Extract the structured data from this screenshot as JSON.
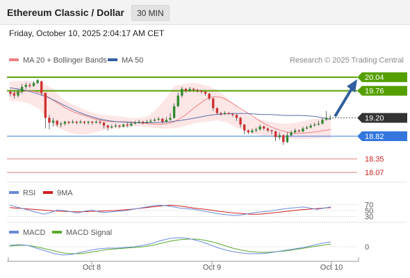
{
  "header": {
    "title": "Ethereum Classic / Dollar",
    "timeframe": "30 MIN",
    "timestamp": "Friday, October 10, 2025 2:04:17 AM CET"
  },
  "legend": {
    "ma20": "MA 20 + Bollinger Bands",
    "ma50": "MA 50",
    "copyright": "Research © 2025 Trading Central",
    "rsi": "RSI",
    "rsi_ma": "9MA",
    "macd": "MACD",
    "macd_signal": "MACD Signal"
  },
  "colors": {
    "candle_up": "#2e8b2e",
    "candle_down": "#d03030",
    "ma20": "#f08080",
    "ma50": "#5a6fa8",
    "bollinger_fill": "#fde3e3",
    "resistance": "#55a000",
    "pivot": "#3377dd",
    "support": "#e07a7a",
    "current": "#333333",
    "arrow": "#2f5f9f",
    "rsi": "#6a8ad8",
    "rsi_ma": "#d02020",
    "macd": "#6a8ad8",
    "macd_signal": "#5aaa2a"
  },
  "chart_data": [
    {
      "type": "candlestick",
      "x_ticks": [
        "Oct 8",
        "Oct 9",
        "Oct 10"
      ],
      "y_range": [
        17.9,
        20.2
      ],
      "levels": [
        {
          "label": "20.04",
          "value": 20.04,
          "kind": "resistance"
        },
        {
          "label": "19.76",
          "value": 19.76,
          "kind": "resistance"
        },
        {
          "label": "19.20",
          "value": 19.2,
          "kind": "current"
        },
        {
          "label": "18.82",
          "value": 18.82,
          "kind": "pivot"
        },
        {
          "label": "18.35",
          "value": 18.35,
          "kind": "support"
        },
        {
          "label": "18.07",
          "value": 18.07,
          "kind": "support"
        }
      ],
      "candles": [
        [
          19.74,
          19.7,
          19.78,
          19.64
        ],
        [
          19.7,
          19.66,
          19.75,
          19.6
        ],
        [
          19.66,
          19.74,
          19.79,
          19.62
        ],
        [
          19.74,
          19.84,
          19.9,
          19.7
        ],
        [
          19.84,
          19.88,
          19.93,
          19.8
        ],
        [
          19.88,
          19.86,
          19.92,
          19.82
        ],
        [
          19.86,
          19.92,
          19.96,
          19.84
        ],
        [
          19.92,
          19.98,
          20.0,
          19.9
        ],
        [
          19.96,
          19.72,
          19.96,
          19.66
        ],
        [
          19.72,
          19.2,
          19.72,
          18.98
        ],
        [
          19.2,
          19.1,
          19.26,
          18.96
        ],
        [
          19.1,
          19.14,
          19.2,
          19.02
        ],
        [
          19.14,
          19.06,
          19.16,
          19.02
        ],
        [
          19.06,
          19.08,
          19.12,
          19.0
        ],
        [
          19.08,
          19.12,
          19.14,
          19.04
        ],
        [
          19.12,
          19.1,
          19.14,
          19.06
        ],
        [
          19.1,
          19.12,
          19.16,
          19.08
        ],
        [
          19.12,
          19.1,
          19.14,
          19.06
        ],
        [
          19.1,
          19.12,
          19.16,
          19.08
        ],
        [
          19.12,
          19.1,
          19.14,
          19.06
        ],
        [
          19.1,
          19.12,
          19.14,
          19.06
        ],
        [
          19.12,
          19.1,
          19.14,
          19.06
        ],
        [
          19.1,
          19.12,
          19.16,
          19.08
        ],
        [
          19.12,
          19.1,
          19.16,
          19.06
        ],
        [
          19.1,
          19.04,
          19.12,
          18.98
        ],
        [
          19.04,
          19.0,
          19.06,
          18.94
        ],
        [
          19.0,
          19.02,
          19.06,
          18.98
        ],
        [
          19.02,
          19.04,
          19.08,
          19.0
        ],
        [
          19.04,
          19.02,
          19.06,
          18.98
        ],
        [
          19.02,
          19.06,
          19.08,
          19.0
        ],
        [
          19.06,
          19.04,
          19.1,
          19.0
        ],
        [
          19.04,
          19.08,
          19.12,
          19.02
        ],
        [
          19.08,
          19.1,
          19.14,
          19.06
        ],
        [
          19.1,
          19.12,
          19.16,
          19.08
        ],
        [
          19.12,
          19.1,
          19.14,
          19.06
        ],
        [
          19.1,
          19.12,
          19.16,
          19.08
        ],
        [
          19.12,
          19.14,
          19.18,
          19.1
        ],
        [
          19.14,
          19.16,
          19.2,
          19.12
        ],
        [
          19.16,
          19.18,
          19.22,
          19.14
        ],
        [
          19.18,
          19.12,
          19.2,
          19.08
        ],
        [
          19.12,
          19.16,
          19.22,
          19.1
        ],
        [
          19.16,
          19.2,
          19.3,
          19.14
        ],
        [
          19.2,
          19.44,
          19.5,
          19.18
        ],
        [
          19.44,
          19.66,
          19.72,
          19.42
        ],
        [
          19.66,
          19.8,
          19.84,
          19.62
        ],
        [
          19.8,
          19.76,
          19.82,
          19.72
        ],
        [
          19.76,
          19.8,
          19.84,
          19.74
        ],
        [
          19.8,
          19.78,
          19.82,
          19.74
        ],
        [
          19.78,
          19.76,
          19.8,
          19.72
        ],
        [
          19.76,
          19.74,
          19.78,
          19.7
        ],
        [
          19.74,
          19.7,
          19.76,
          19.66
        ],
        [
          19.7,
          19.6,
          19.72,
          19.56
        ],
        [
          19.6,
          19.4,
          19.62,
          19.34
        ],
        [
          19.4,
          19.3,
          19.42,
          19.26
        ],
        [
          19.3,
          19.28,
          19.32,
          19.24
        ],
        [
          19.28,
          19.3,
          19.34,
          19.26
        ],
        [
          19.3,
          19.28,
          19.32,
          19.26
        ],
        [
          19.28,
          19.26,
          19.3,
          19.22
        ],
        [
          19.26,
          19.2,
          19.28,
          19.14
        ],
        [
          19.2,
          19.06,
          19.22,
          19.0
        ],
        [
          19.06,
          18.94,
          19.08,
          18.86
        ],
        [
          18.94,
          18.9,
          18.96,
          18.86
        ],
        [
          18.9,
          18.94,
          18.98,
          18.88
        ],
        [
          18.94,
          18.96,
          19.0,
          18.9
        ],
        [
          18.96,
          19.02,
          19.06,
          18.94
        ],
        [
          19.02,
          18.98,
          19.04,
          18.94
        ],
        [
          18.98,
          18.94,
          19.0,
          18.9
        ],
        [
          18.94,
          18.92,
          18.96,
          18.86
        ],
        [
          18.92,
          18.8,
          18.94,
          18.72
        ],
        [
          18.8,
          18.84,
          18.9,
          18.74
        ],
        [
          18.84,
          18.7,
          18.86,
          18.64
        ],
        [
          18.7,
          18.84,
          18.9,
          18.68
        ],
        [
          18.84,
          18.9,
          18.94,
          18.82
        ],
        [
          18.9,
          18.94,
          18.98,
          18.88
        ],
        [
          18.94,
          18.92,
          18.96,
          18.9
        ],
        [
          18.92,
          18.98,
          19.02,
          18.9
        ],
        [
          18.98,
          19.0,
          19.04,
          18.96
        ],
        [
          19.0,
          19.04,
          19.08,
          18.98
        ],
        [
          19.04,
          19.06,
          19.1,
          19.02
        ],
        [
          19.06,
          19.08,
          19.14,
          19.04
        ],
        [
          19.08,
          19.16,
          19.2,
          19.06
        ],
        [
          19.16,
          19.2,
          19.34,
          19.14
        ],
        [
          19.2,
          19.2,
          19.26,
          19.16
        ]
      ],
      "ma20": [
        19.7,
        19.72,
        19.74,
        19.76,
        19.75,
        19.72,
        19.66,
        19.58,
        19.5,
        19.42,
        19.35,
        19.3,
        19.26,
        19.22,
        19.18,
        19.15,
        19.13,
        19.12,
        19.12,
        19.12,
        19.11,
        19.1,
        19.09,
        19.08,
        19.07,
        19.07,
        19.08,
        19.11,
        19.18,
        19.26,
        19.36,
        19.46,
        19.55,
        19.62,
        19.64,
        19.62,
        19.56,
        19.48,
        19.4,
        19.32,
        19.24,
        19.16,
        19.08,
        19.02,
        18.97,
        18.93,
        18.9,
        18.88,
        18.88,
        18.89,
        18.9,
        18.92,
        18.94,
        18.96
      ],
      "ma50": [
        19.82,
        19.8,
        19.77,
        19.73,
        19.68,
        19.62,
        19.55,
        19.47,
        19.39,
        19.32,
        19.26,
        19.21,
        19.17,
        19.14,
        19.12,
        19.11,
        19.1,
        19.1,
        19.1,
        19.1,
        19.11,
        19.12,
        19.14,
        19.16,
        19.19,
        19.22,
        19.25,
        19.27,
        19.28,
        19.29,
        19.29,
        19.29,
        19.28,
        19.27,
        19.27,
        19.26,
        19.25,
        19.25,
        19.25,
        19.24,
        19.23,
        19.2,
        19.17
      ],
      "bollinger_upper": [
        19.95,
        19.96,
        19.97,
        19.94,
        19.9,
        19.8,
        19.6,
        19.5,
        19.42,
        19.34,
        19.28,
        19.26,
        19.24,
        19.22,
        19.2,
        19.2,
        19.24,
        19.4,
        19.6,
        19.86,
        19.9,
        19.92,
        19.9,
        19.85,
        19.76,
        19.62,
        19.46,
        19.3,
        19.2,
        19.16,
        19.12,
        19.08,
        19.08,
        19.1,
        19.14,
        19.18,
        19.2,
        19.24
      ],
      "bollinger_lower": [
        19.55,
        19.54,
        19.5,
        19.4,
        19.2,
        19.0,
        18.92,
        18.86,
        18.85,
        18.9,
        18.95,
        18.98,
        19.0,
        19.02,
        19.02,
        19.0,
        18.98,
        18.98,
        19.0,
        19.05,
        19.1,
        19.12,
        19.15,
        19.1,
        19.0,
        18.92,
        18.86,
        18.82,
        18.8,
        18.78,
        18.76,
        18.76,
        18.77,
        18.78,
        18.78
      ]
    },
    {
      "type": "line",
      "name": "RSI",
      "levels": [
        70,
        50,
        30
      ],
      "series": [
        {
          "name": "RSI",
          "values": [
            68,
            62,
            56,
            50,
            44,
            38,
            44,
            52,
            50,
            46,
            42,
            48,
            52,
            46,
            44,
            46,
            48,
            50,
            54,
            58,
            62,
            66,
            68,
            66,
            62,
            58,
            56,
            54,
            50,
            46,
            42,
            38,
            36,
            34,
            36,
            40,
            44,
            46,
            48,
            52,
            55,
            58,
            60,
            62,
            58,
            54,
            58,
            62
          ]
        },
        {
          "name": "9MA",
          "values": [
            60,
            58,
            56,
            54,
            52,
            50,
            48,
            47,
            46,
            46,
            47,
            48,
            49,
            50,
            52,
            54,
            57,
            60,
            63,
            66,
            68,
            66,
            62,
            58,
            55,
            52,
            48,
            45,
            42,
            40,
            38,
            38,
            40,
            43,
            46,
            49,
            52,
            54,
            56,
            58,
            60
          ]
        }
      ]
    },
    {
      "type": "line",
      "name": "MACD",
      "levels": [
        0
      ],
      "series": [
        {
          "name": "MACD",
          "values": [
            0.02,
            0.03,
            0.02,
            -0.02,
            -0.06,
            -0.1,
            -0.12,
            -0.11,
            -0.08,
            -0.05,
            -0.03,
            -0.02,
            -0.02,
            -0.01,
            0.0,
            0.02,
            0.05,
            0.09,
            0.12,
            0.13,
            0.12,
            0.09,
            0.05,
            0.0,
            -0.04,
            -0.07,
            -0.09,
            -0.1,
            -0.1,
            -0.09,
            -0.07,
            -0.05,
            -0.03,
            -0.01,
            0.02,
            0.05,
            0.07
          ]
        },
        {
          "name": "MACD Signal",
          "values": [
            0.01,
            0.02,
            0.02,
            0.0,
            -0.03,
            -0.06,
            -0.09,
            -0.1,
            -0.1,
            -0.08,
            -0.06,
            -0.04,
            -0.03,
            -0.02,
            -0.01,
            0.0,
            0.02,
            0.05,
            0.08,
            0.1,
            0.11,
            0.11,
            0.09,
            0.06,
            0.02,
            -0.02,
            -0.05,
            -0.07,
            -0.08,
            -0.08,
            -0.07,
            -0.06,
            -0.04,
            -0.02,
            0.0,
            0.02,
            0.04
          ]
        }
      ]
    }
  ]
}
